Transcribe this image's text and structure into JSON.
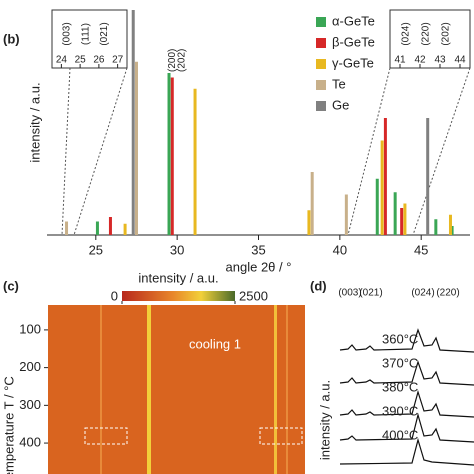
{
  "chart_data": [
    {
      "type": "stick",
      "panel": "(b)",
      "xlabel": "angle 2θ / °",
      "ylabel": "intensity / a.u.",
      "xlim": [
        22,
        48
      ],
      "ylim": [
        0,
        100
      ],
      "xticks": [
        25,
        30,
        35,
        40,
        45
      ],
      "legend": "top-right",
      "series": [
        {
          "name": "α-GeTe",
          "color": "#3aa655",
          "x": [
            25.1,
            29.5,
            42.3,
            43.4,
            45.9,
            46.9
          ],
          "values": [
            6,
            72,
            25,
            19,
            7,
            4
          ]
        },
        {
          "name": "β-GeTe",
          "color": "#d62828",
          "x": [
            25.9,
            29.7,
            42.8,
            43.8
          ],
          "values": [
            8,
            70,
            52,
            12
          ]
        },
        {
          "name": "γ-GeTe",
          "color": "#e8b820",
          "x": [
            26.8,
            31.1,
            38.1,
            42.6,
            44.0,
            46.8
          ],
          "values": [
            5,
            65,
            11,
            42,
            14,
            9
          ]
        },
        {
          "name": "Te",
          "color": "#c8b08a",
          "x": [
            23.2,
            27.5,
            38.3,
            40.4
          ],
          "values": [
            6,
            77,
            28,
            18
          ]
        },
        {
          "name": "Ge",
          "color": "#808080",
          "x": [
            27.3,
            45.4
          ],
          "values": [
            100,
            52
          ]
        }
      ],
      "annotations": [
        {
          "text": "(200)",
          "color": "#d62828",
          "x": 29.7
        },
        {
          "text": "(202)",
          "color": "#3aa655",
          "x": 30.3
        }
      ],
      "insets": [
        {
          "xticks": [
            24,
            25,
            26,
            27
          ],
          "labels": [
            {
              "text": "(003)",
              "color": "#3aa655"
            },
            {
              "text": "(111)",
              "color": "#d62828"
            },
            {
              "text": "(021)",
              "color": "#3aa655"
            }
          ]
        },
        {
          "xticks": [
            41,
            42,
            43,
            44
          ],
          "labels": [
            {
              "text": "(024)",
              "color": "#3aa655"
            },
            {
              "text": "(220)",
              "color": "#d62828"
            },
            {
              "text": "(202)",
              "color": "#3aa655"
            }
          ]
        }
      ]
    },
    {
      "type": "heatmap",
      "panel": "(c)",
      "colorbar_label": "intensity / a.u.",
      "clim": [
        0,
        2500
      ],
      "cticks": [
        0,
        2500
      ],
      "ylabel": "temperature T / °C",
      "ylim": [
        34,
        482
      ],
      "yticks": [
        100,
        200,
        300,
        400
      ],
      "annotation": "cooling 1"
    },
    {
      "type": "waterfall",
      "panel": "(d)",
      "ylabel": "intensity / a.u.",
      "peaks": [
        {
          "text": "(003)",
          "color": "#3aa655"
        },
        {
          "text": "(021)",
          "color": "#3aa655"
        },
        {
          "text": "(024)",
          "color": "#3aa655"
        },
        {
          "text": "(220)",
          "color": "#3aa655"
        }
      ],
      "temperatures": [
        "360°C",
        "370°C",
        "380°C",
        "390°C",
        "400°C"
      ]
    }
  ]
}
